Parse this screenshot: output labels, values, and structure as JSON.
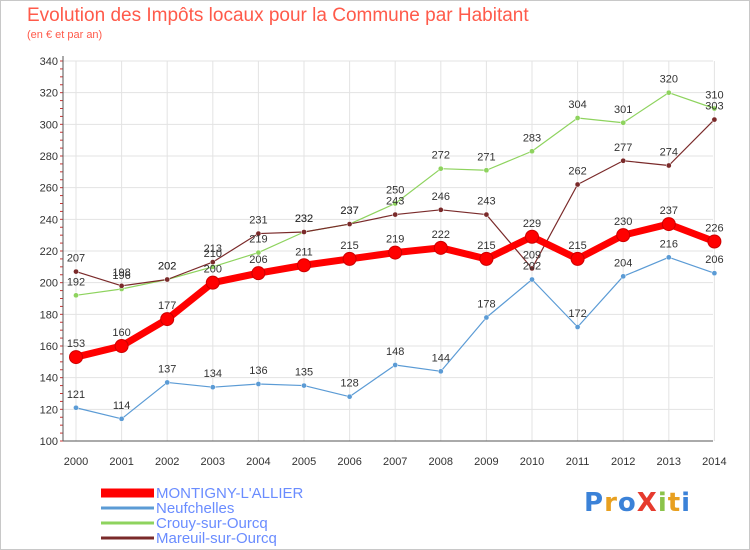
{
  "title": "Evolution des Impôts locaux pour la Commune par Habitant",
  "subtitle": "(en € et par an)",
  "logo": {
    "text": "ProXiti",
    "colors": [
      "#3b82d8",
      "#e8a020",
      "#3b82d8",
      "#e63b2e",
      "#8bc34a",
      "#e8a020",
      "#3b82d8"
    ]
  },
  "chart_data": {
    "type": "line",
    "title": "Evolution des Impôts locaux pour la Commune par Habitant",
    "subtitle": "(en € et par an)",
    "x": [
      "2000",
      "2001",
      "2002",
      "2003",
      "2004",
      "2005",
      "2006",
      "2007",
      "2008",
      "2009",
      "2010",
      "2011",
      "2012",
      "2013",
      "2014"
    ],
    "ylim": [
      100,
      340
    ],
    "yticks": [
      100,
      120,
      140,
      160,
      180,
      200,
      220,
      240,
      260,
      280,
      300,
      320,
      340
    ],
    "grid": true,
    "legend_position": "bottom-left",
    "series": [
      {
        "name": "MONTIGNY-L'ALLIER",
        "color": "#ff0000",
        "emphasis": true,
        "values": [
          153,
          160,
          177,
          200,
          206,
          211,
          215,
          219,
          222,
          215,
          229,
          215,
          230,
          237,
          226
        ]
      },
      {
        "name": "Neufchelles",
        "color": "#5b9bd5",
        "values": [
          121,
          114,
          137,
          134,
          136,
          135,
          128,
          148,
          144,
          178,
          202,
          172,
          204,
          216,
          206
        ]
      },
      {
        "name": "Crouy-sur-Ourcq",
        "color": "#8ed35e",
        "values": [
          192,
          196,
          202,
          210,
          219,
          232,
          237,
          250,
          272,
          271,
          283,
          304,
          301,
          320,
          310
        ]
      },
      {
        "name": "Mareuil-sur-Ourcq",
        "color": "#7a2a2a",
        "values": [
          207,
          198,
          202,
          213,
          231,
          232,
          237,
          243,
          246,
          243,
          209,
          262,
          277,
          274,
          303
        ]
      }
    ],
    "labels": [
      {
        "series": 1,
        "text": [
          "121",
          "114",
          "137",
          "134",
          "136",
          "135",
          "128",
          "148",
          "144",
          "178",
          "202",
          "172",
          "204",
          "216",
          "206"
        ]
      },
      {
        "series": 2,
        "text": [
          "192",
          "196",
          "202",
          "210",
          "219",
          "232",
          "237",
          "250",
          "272",
          "271",
          "283",
          "304",
          "301",
          "320",
          "310"
        ]
      },
      {
        "series": 3,
        "text": [
          "207",
          "198",
          "202",
          "213",
          "231",
          "232",
          "237",
          "243",
          "246",
          "243",
          "209",
          "262",
          "277",
          "274",
          "303"
        ]
      },
      {
        "series": 0,
        "text": [
          "153",
          "160",
          "177",
          "200",
          "206",
          "211",
          "215",
          "219",
          "222",
          "215",
          "229",
          "215",
          "230",
          "237",
          "226"
        ]
      }
    ]
  }
}
